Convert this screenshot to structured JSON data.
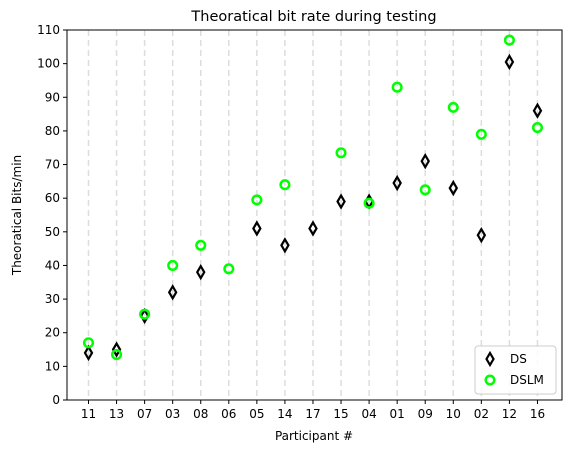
{
  "chart_data": {
    "type": "scatter",
    "title": "Theoratical bit rate during testing",
    "xlabel": "Participant #",
    "ylabel": "Theoratical Bits/min",
    "categories": [
      "11",
      "13",
      "07",
      "03",
      "08",
      "06",
      "05",
      "14",
      "17",
      "15",
      "04",
      "01",
      "09",
      "10",
      "02",
      "12",
      "16"
    ],
    "ylim": [
      0,
      110
    ],
    "yticks": [
      0,
      10,
      20,
      30,
      40,
      50,
      60,
      70,
      80,
      90,
      100,
      110
    ],
    "grid": "vertical dashed",
    "legend_position": "bottom-right",
    "series": [
      {
        "name": "DS",
        "marker": "thin-diamond",
        "color": "#000000",
        "values": [
          14,
          15,
          25,
          32,
          38,
          null,
          51,
          46,
          51,
          59,
          59,
          64.5,
          71,
          63,
          49,
          100.5,
          86
        ]
      },
      {
        "name": "DSLM",
        "marker": "circle",
        "color": "#00ff00",
        "values": [
          17,
          13.5,
          25.5,
          40,
          46,
          39,
          59.5,
          64,
          null,
          73.5,
          58.5,
          93,
          62.5,
          87,
          79,
          107,
          81
        ]
      }
    ]
  }
}
